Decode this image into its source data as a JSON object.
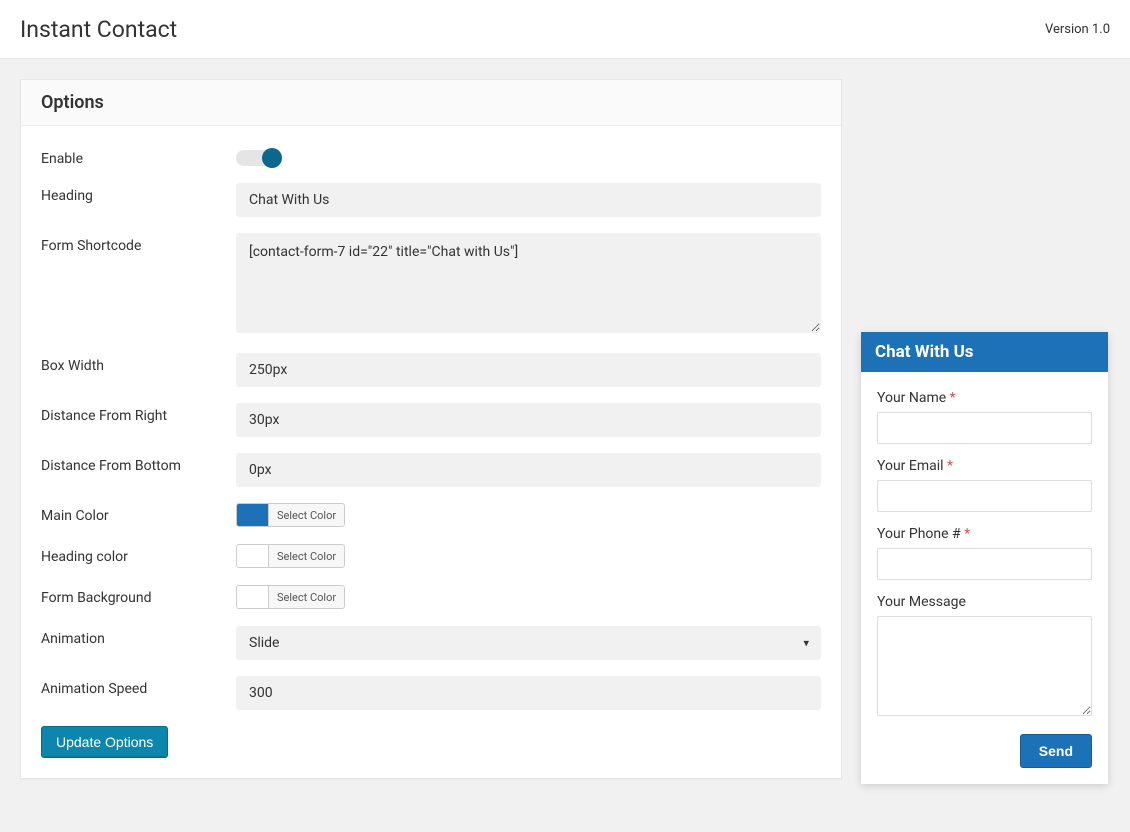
{
  "header": {
    "title": "Instant Contact",
    "version": "Version 1.0"
  },
  "panel": {
    "title": "Options",
    "fields": {
      "enable_label": "Enable",
      "enable_value": true,
      "heading_label": "Heading",
      "heading_value": "Chat With Us",
      "shortcode_label": "Form Shortcode",
      "shortcode_value": "[contact-form-7 id=\"22\" title=\"Chat with Us\"]",
      "box_width_label": "Box Width",
      "box_width_value": "250px",
      "dist_right_label": "Distance From Right",
      "dist_right_value": "30px",
      "dist_bottom_label": "Distance From Bottom",
      "dist_bottom_value": "0px",
      "main_color_label": "Main Color",
      "main_color_value": "#1c71b7",
      "heading_color_label": "Heading color",
      "heading_color_value": "#ffffff",
      "form_bg_label": "Form Background",
      "form_bg_value": "#ffffff",
      "animation_label": "Animation",
      "animation_value": "Slide",
      "animation_speed_label": "Animation Speed",
      "animation_speed_value": "300",
      "select_color_text": "Select Color"
    },
    "submit_label": "Update Options"
  },
  "chat": {
    "header": "Chat With Us",
    "name_label": "Your Name",
    "email_label": "Your Email",
    "phone_label": "Your Phone #",
    "message_label": "Your Message",
    "send_label": "Send"
  },
  "colors": {
    "accent": "#1c71b7",
    "toggle_knob": "#0c678d",
    "button_primary": "#0c86ad",
    "page_bg": "#f1f1f1",
    "input_bg": "#f1f1f1",
    "panel_bg": "#ffffff"
  }
}
